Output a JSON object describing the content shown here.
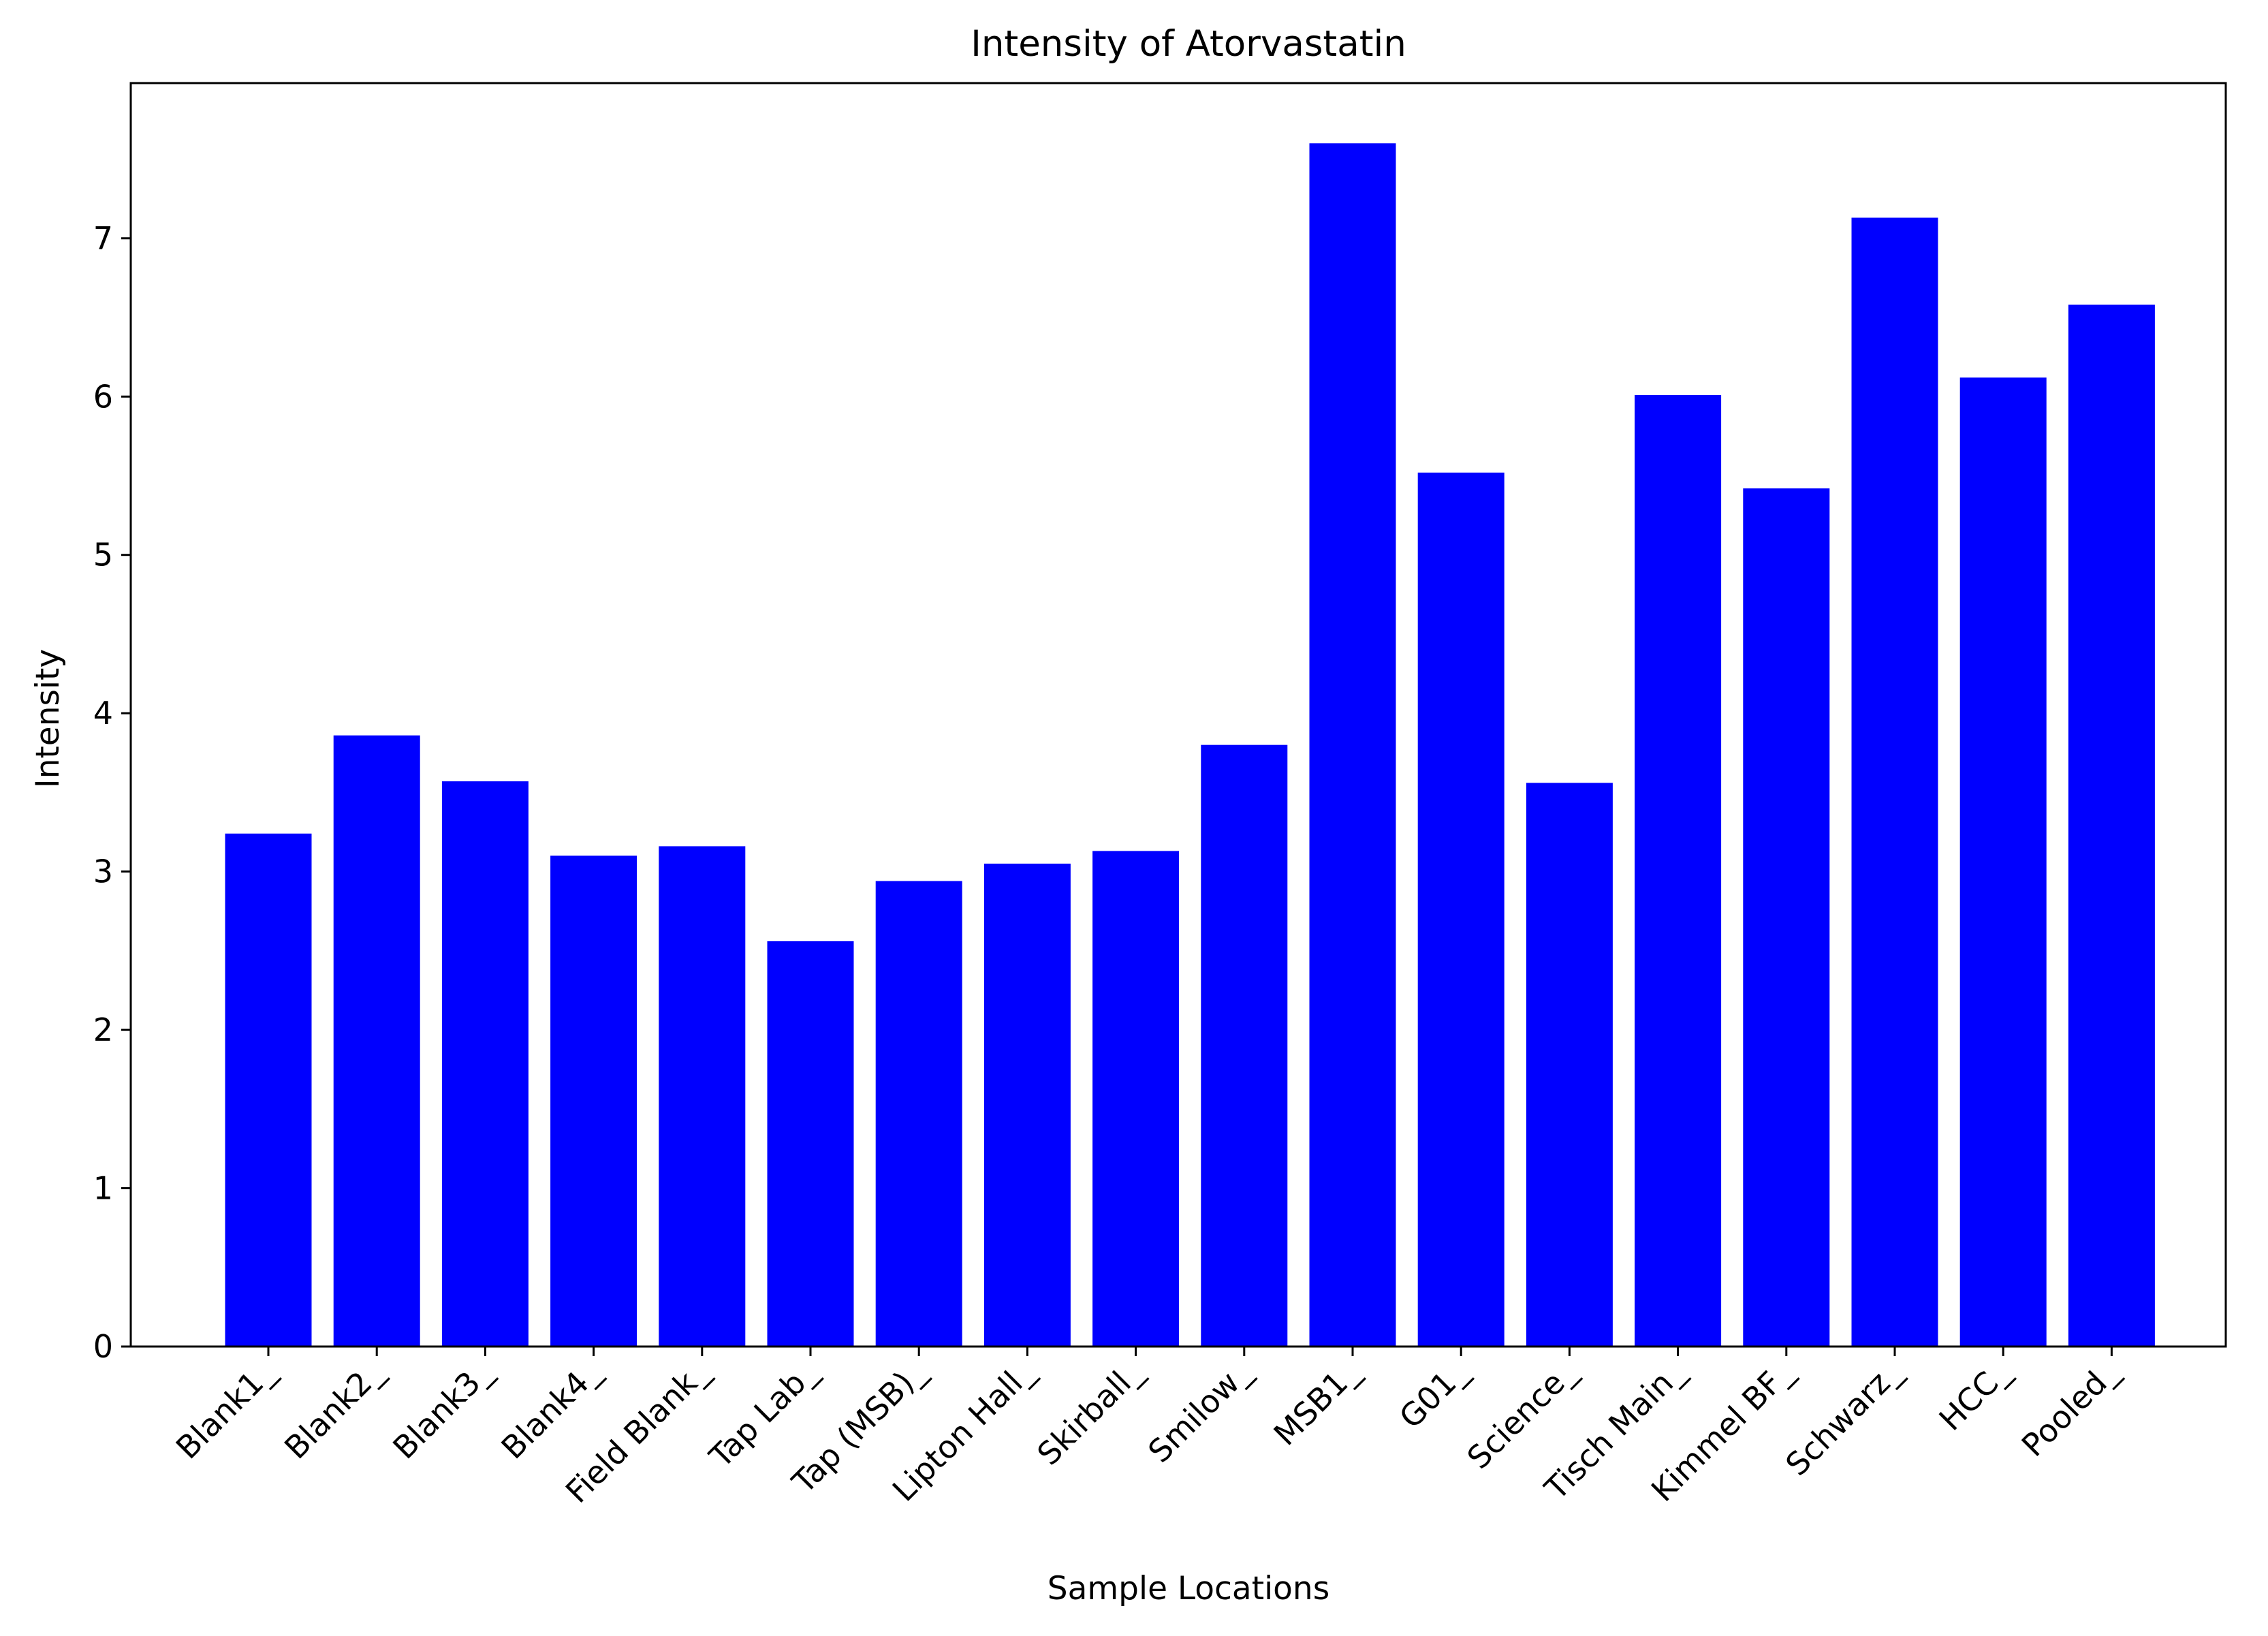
{
  "chart_data": {
    "type": "bar",
    "title": "Intensity of Atorvastatin",
    "xlabel": "Sample Locations",
    "ylabel": "Intensity",
    "categories": [
      "Blank1_",
      "Blank2_",
      "Blank3_",
      "Blank4_",
      "Field Blank_",
      "Tap Lab_",
      "Tap (MSB)_",
      "Lipton Hall_",
      "Skirball_",
      "Smilow_",
      "MSB1_",
      "G01_",
      "Science_",
      "Tisch Main_",
      "Kimmel BF_",
      "Schwarz_",
      "HCC_",
      "Pooled_"
    ],
    "values": [
      3.24,
      3.86,
      3.57,
      3.1,
      3.16,
      2.56,
      2.94,
      3.05,
      3.13,
      3.8,
      7.6,
      5.52,
      3.56,
      6.01,
      5.42,
      7.13,
      6.12,
      6.58
    ],
    "ylim": [
      0,
      7.98
    ],
    "yticks": [
      "0",
      "1",
      "2",
      "3",
      "4",
      "5",
      "6",
      "7"
    ],
    "bar_color": "#0000ff",
    "grid": false,
    "legend": "none"
  }
}
